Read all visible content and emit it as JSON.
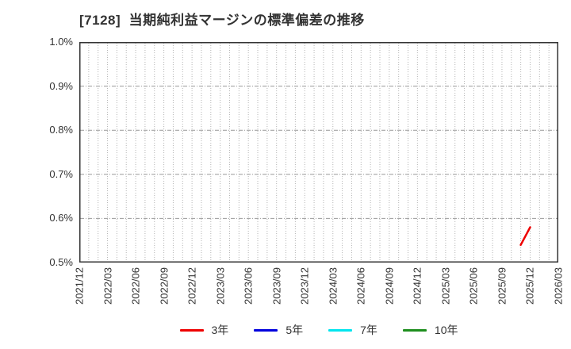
{
  "title": "[7128]  当期純利益マージンの標準偏差の推移",
  "legend": [
    {
      "label": "3年",
      "color": "#ee0000"
    },
    {
      "label": "5年",
      "color": "#0000dd"
    },
    {
      "label": "7年",
      "color": "#00e5ee"
    },
    {
      "label": "10年",
      "color": "#1e8e1e"
    }
  ],
  "chart_data": {
    "type": "line",
    "title": "[7128] 当期純利益マージンの標準偏差の推移",
    "xlabel": "",
    "ylabel": "",
    "y_unit": "%",
    "ylim": [
      0.5,
      1.0
    ],
    "y_tick_step": 0.1,
    "y_tick_labels": [
      "1.0%",
      "0.9%",
      "0.8%",
      "0.7%",
      "0.6%",
      "0.5%"
    ],
    "y_tick_values": [
      1.0,
      0.9,
      0.8,
      0.7,
      0.6,
      0.5
    ],
    "x_start": "2021/12",
    "x_end": "2026/03",
    "x_total_months": 51,
    "x_tick_every_months": 3,
    "x_tick_labels": [
      "2021/12",
      "2022/03",
      "2022/06",
      "2022/09",
      "2022/12",
      "2023/03",
      "2023/06",
      "2023/09",
      "2023/12",
      "2024/03",
      "2024/06",
      "2024/09",
      "2024/12",
      "2025/03",
      "2025/06",
      "2025/09",
      "2025/12",
      "2026/03"
    ],
    "grid": {
      "vertical": "monthly dotted",
      "horizontal": "dashed at each 0.1%",
      "vertical_color": "#b4b4b4",
      "horizontal_color": "#999999",
      "border_color": "#333333"
    },
    "legend_position": "bottom-center",
    "series": [
      {
        "name": "3年",
        "color": "#ee0000",
        "points": [
          {
            "x": "2025/11",
            "y": 0.54
          },
          {
            "x": "2025/12",
            "y": 0.58
          }
        ]
      },
      {
        "name": "5年",
        "color": "#0000dd",
        "points": []
      },
      {
        "name": "7年",
        "color": "#00e5ee",
        "points": []
      },
      {
        "name": "10年",
        "color": "#1e8e1e",
        "points": []
      }
    ]
  }
}
